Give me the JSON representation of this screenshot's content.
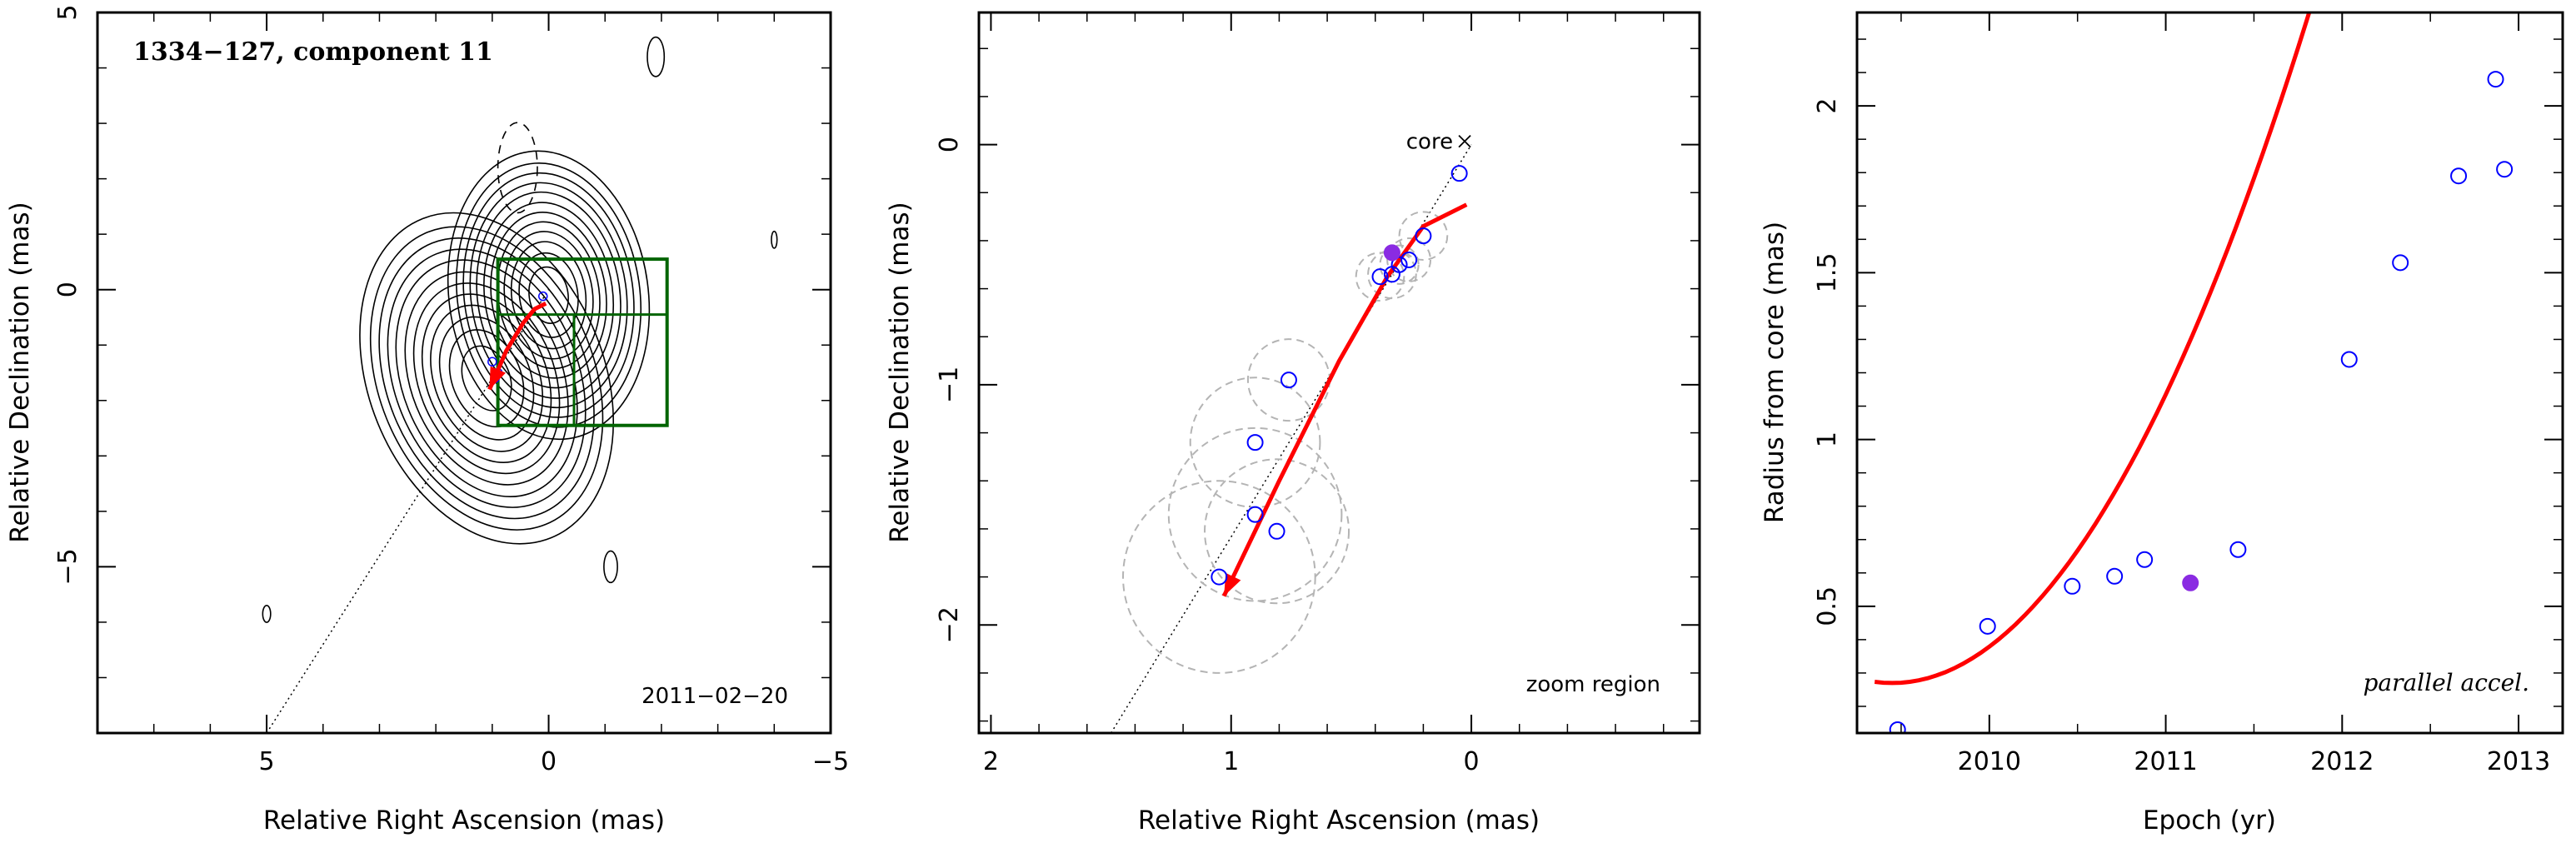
{
  "chart_data": [
    {
      "type": "contour-map",
      "title": "1334−127, component 11",
      "date": "2011−02−20",
      "xlabel": "Relative Right Ascension (mas)",
      "ylabel": "Relative Declination (mas)",
      "xlim": [
        8,
        -5
      ],
      "ylim": [
        -8,
        5
      ],
      "xticks": [
        {
          "v": 5,
          "label": "5"
        },
        {
          "v": 0,
          "label": "0"
        },
        {
          "v": -5,
          "label": "−5"
        }
      ],
      "yticks": [
        {
          "v": 5,
          "label": "5"
        },
        {
          "v": 0,
          "label": "0"
        },
        {
          "v": -5,
          "label": "−5"
        }
      ],
      "zoom_box": {
        "ra": [
          0.9,
          -2.1
        ],
        "dec": [
          -2.45,
          0.55
        ]
      },
      "zoom_divider": {
        "ra": [
          0.9,
          -0.45
        ],
        "dec": -0.45
      },
      "jet_line": [
        [
          5,
          -8
        ],
        [
          0,
          0
        ]
      ],
      "trajectory": [
        [
          1.05,
          -1.8
        ],
        [
          0.75,
          -1.1
        ],
        [
          0.45,
          -0.6
        ],
        [
          0.25,
          -0.35
        ],
        [
          0.05,
          -0.25
        ]
      ],
      "positions": [
        [
          0.1,
          -0.12
        ],
        [
          1.0,
          -1.3
        ],
        [
          0.9,
          -1.5
        ],
        [
          0.95,
          -1.6
        ]
      ],
      "contour_peaks": [
        {
          "ra": 0.0,
          "dec": -0.1,
          "sx": 1.1,
          "sy": 1.6
        },
        {
          "ra": 1.1,
          "dec": -1.6,
          "sx": 1.3,
          "sy": 1.9
        }
      ],
      "colors": {
        "contour": "#000000",
        "box": "#006400",
        "trajectory": "#ff0000",
        "open": "#0000ff"
      }
    },
    {
      "type": "scatter",
      "label": "zoom region",
      "core_label": "core",
      "xlabel": "Relative Right Ascension (mas)",
      "ylabel": "Relative Declination (mas)",
      "xlim": [
        2.05,
        -0.95
      ],
      "ylim": [
        -2.45,
        0.55
      ],
      "xticks": [
        {
          "v": 2,
          "label": "2"
        },
        {
          "v": 1,
          "label": "1"
        },
        {
          "v": 0,
          "label": "0"
        }
      ],
      "yticks": [
        {
          "v": 0,
          "label": "0"
        },
        {
          "v": -1,
          "label": "−1"
        },
        {
          "v": -2,
          "label": "−2"
        }
      ],
      "points": [
        {
          "x": 0.05,
          "y": -0.12,
          "r": 0.0,
          "filled": false
        },
        {
          "x": 0.2,
          "y": -0.38,
          "r": 0.1,
          "filled": false
        },
        {
          "x": 0.26,
          "y": -0.48,
          "r": 0.09,
          "filled": false
        },
        {
          "x": 0.3,
          "y": -0.5,
          "r": 0.08,
          "filled": false
        },
        {
          "x": 0.33,
          "y": -0.54,
          "r": 0.1,
          "filled": false
        },
        {
          "x": 0.38,
          "y": -0.55,
          "r": 0.1,
          "filled": false
        },
        {
          "x": 0.33,
          "y": -0.45,
          "r": 0.0,
          "filled": true
        },
        {
          "x": 0.76,
          "y": -0.98,
          "r": 0.17,
          "filled": false
        },
        {
          "x": 0.9,
          "y": -1.24,
          "r": 0.27,
          "filled": false
        },
        {
          "x": 0.81,
          "y": -1.61,
          "r": 0.3,
          "filled": false
        },
        {
          "x": 0.9,
          "y": -1.54,
          "r": 0.36,
          "filled": false
        },
        {
          "x": 1.05,
          "y": -1.8,
          "r": 0.4,
          "filled": false
        }
      ],
      "trajectory": [
        [
          1.03,
          -1.88
        ],
        [
          0.8,
          -1.4
        ],
        [
          0.55,
          -0.9
        ],
        [
          0.35,
          -0.55
        ],
        [
          0.2,
          -0.34
        ],
        [
          0.02,
          -0.25
        ]
      ],
      "jet_line": [
        [
          1.5,
          -2.45
        ],
        [
          0.0,
          0.0
        ]
      ],
      "core": {
        "x": 0,
        "y": 0
      },
      "colors": {
        "open": "#0000ff",
        "filled": "#8a2be2",
        "trajectory": "#ff0000",
        "error": "#b4b4b4"
      }
    },
    {
      "type": "scatter",
      "label": "parallel accel.",
      "xlabel": "Epoch (yr)",
      "ylabel": "Radius from core (mas)",
      "xlim": [
        2009.25,
        2013.25
      ],
      "ylim": [
        0.12,
        2.28
      ],
      "xticks": [
        {
          "v": 2010,
          "label": "2010"
        },
        {
          "v": 2011,
          "label": "2011"
        },
        {
          "v": 2012,
          "label": "2012"
        },
        {
          "v": 2013,
          "label": "2013"
        }
      ],
      "yticks": [
        {
          "v": 0.5,
          "label": "0.5"
        },
        {
          "v": 1,
          "label": "1"
        },
        {
          "v": 1.5,
          "label": "1.5"
        },
        {
          "v": 2,
          "label": "2"
        }
      ],
      "points": [
        {
          "x": 2009.48,
          "y": 0.13,
          "filled": false
        },
        {
          "x": 2009.99,
          "y": 0.44,
          "filled": false
        },
        {
          "x": 2010.47,
          "y": 0.56,
          "filled": false
        },
        {
          "x": 2010.71,
          "y": 0.59,
          "filled": false
        },
        {
          "x": 2010.88,
          "y": 0.64,
          "filled": false
        },
        {
          "x": 2011.14,
          "y": 0.57,
          "filled": true
        },
        {
          "x": 2011.41,
          "y": 0.67,
          "filled": false
        },
        {
          "x": 2012.04,
          "y": 1.24,
          "filled": false
        },
        {
          "x": 2012.33,
          "y": 1.53,
          "filled": false
        },
        {
          "x": 2012.66,
          "y": 1.79,
          "filled": false
        },
        {
          "x": 2012.87,
          "y": 2.08,
          "filled": false
        },
        {
          "x": 2012.92,
          "y": 1.81,
          "filled": false
        }
      ],
      "fit": {
        "a": 0.27,
        "b": 0.36,
        "x0": 2009.45,
        "x_start": 2009.35,
        "x_end": 2013.15
      },
      "colors": {
        "open": "#0000ff",
        "filled": "#8a2be2",
        "fit": "#ff0000"
      }
    }
  ]
}
